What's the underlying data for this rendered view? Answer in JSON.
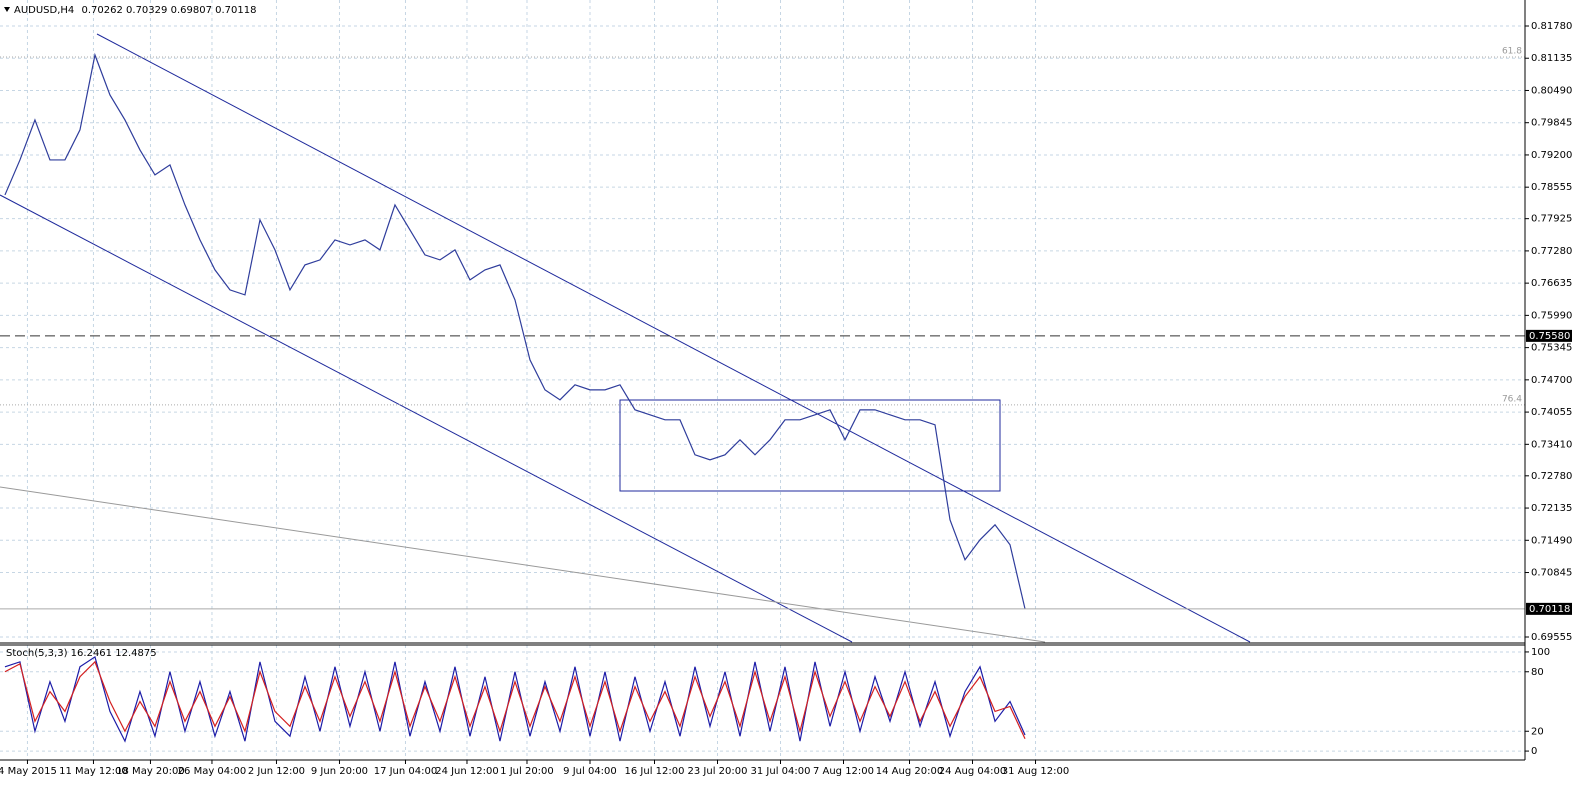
{
  "chart_data": [
    {
      "type": "line",
      "symbol": "AUDUSD,H4",
      "open": 0.70262,
      "high": 0.70329,
      "low": 0.69807,
      "series": [
        {
          "color": "#2f3d9c",
          "values": [
            0.784,
            0.791,
            0.799,
            0.791,
            0.791,
            0.797,
            0.812,
            0.804,
            0.799,
            0.793,
            0.788,
            0.79,
            0.782,
            0.775,
            0.769,
            0.765,
            0.764,
            0.779,
            0.773,
            0.765,
            0.77,
            0.771,
            0.775,
            0.774,
            0.775,
            0.773,
            0.782,
            0.777,
            0.772,
            0.771,
            0.773,
            0.767,
            0.769,
            0.77,
            0.763,
            0.751,
            0.745,
            0.743,
            0.746,
            0.745,
            0.745,
            0.746,
            0.741,
            0.74,
            0.739,
            0.739,
            0.732,
            0.731,
            0.732,
            0.735,
            0.732,
            0.735,
            0.739,
            0.739,
            0.74,
            0.741,
            0.735,
            0.741,
            0.741,
            0.74,
            0.739,
            0.739,
            0.738,
            0.719,
            0.711,
            0.715,
            0.718,
            0.714,
            0.70118
          ]
        }
      ],
      "xlim": [
        -0.33,
        101.33
      ],
      "xticks": [
        {
          "value": 1.5,
          "label": "4 May 2015"
        },
        {
          "value": 5.9,
          "label": "11 May 12:00"
        },
        {
          "value": 9.7,
          "label": "18 May 20:00"
        },
        {
          "value": 13.8,
          "label": "26 May 04:00"
        },
        {
          "value": 18.1,
          "label": "2 Jun 12:00"
        },
        {
          "value": 22.3,
          "label": "9 Jun 20:00"
        },
        {
          "value": 26.7,
          "label": "17 Jun 04:00"
        },
        {
          "value": 30.8,
          "label": "24 Jun 12:00"
        },
        {
          "value": 34.8,
          "label": "1 Jul 20:00"
        },
        {
          "value": 39,
          "label": "9 Jul 04:00"
        },
        {
          "value": 43.3,
          "label": "16 Jul 12:00"
        },
        {
          "value": 47.5,
          "label": "23 Jul 20:00"
        },
        {
          "value": 51.7,
          "label": "31 Jul 04:00"
        },
        {
          "value": 55.9,
          "label": "7 Aug 12:00"
        },
        {
          "value": 60.3,
          "label": "14 Aug 20:00"
        },
        {
          "value": 64.5,
          "label": "24 Aug 04:00"
        },
        {
          "value": 68.7,
          "label": "31 Aug 12:00"
        }
      ],
      "ylim": [
        0.69455,
        0.823
      ],
      "yticks": [
        {
          "value": 0.8178,
          "label": "0.81780"
        },
        0.81135,
        {
          "value": 0.8049,
          "label": "0.80490"
        },
        0.79845,
        {
          "value": 0.792,
          "label": "0.79200"
        },
        0.78555,
        0.77925,
        {
          "value": 0.7728,
          "label": "0.77280"
        },
        0.76635,
        {
          "value": 0.7599,
          "label": "0.75990"
        },
        0.75345,
        {
          "value": 0.747,
          "label": "0.74700"
        },
        0.74055,
        {
          "value": 0.7341,
          "label": "0.73410"
        },
        {
          "value": 0.7278,
          "label": "0.72780"
        },
        0.72135,
        {
          "value": 0.7149,
          "label": "0.71490"
        },
        0.70845,
        0.69555
      ],
      "grid": true,
      "levels": [
        {
          "value": 0.7558,
          "label": "0.75580"
        }
      ],
      "fib_levels": [
        {
          "value": 0.8116,
          "label": "61.8"
        },
        {
          "value": 0.742,
          "label": "76.4"
        }
      ]
    },
    {
      "type": "line",
      "title": "Stoch(5,3,3)",
      "series": [
        {
          "color": "#1c1ca8",
          "values": [
            85,
            90,
            20,
            70,
            30,
            85,
            95,
            40,
            10,
            60,
            15,
            80,
            20,
            70,
            15,
            60,
            10,
            90,
            30,
            15,
            75,
            20,
            85,
            25,
            80,
            20,
            90,
            15,
            70,
            20,
            85,
            15,
            75,
            10,
            80,
            15,
            70,
            20,
            85,
            15,
            80,
            10,
            75,
            20,
            70,
            15,
            85,
            25,
            80,
            15,
            90,
            20,
            85,
            10,
            90,
            25,
            80,
            20,
            75,
            30,
            80,
            25,
            70,
            15,
            60,
            85,
            30,
            50,
            16.2461
          ]
        },
        {
          "color": "#d42020",
          "values": [
            80,
            88,
            30,
            60,
            40,
            75,
            90,
            50,
            20,
            50,
            25,
            70,
            30,
            60,
            25,
            55,
            20,
            80,
            40,
            25,
            65,
            30,
            75,
            35,
            70,
            30,
            80,
            25,
            65,
            30,
            75,
            25,
            65,
            20,
            70,
            25,
            65,
            30,
            75,
            25,
            70,
            20,
            65,
            30,
            60,
            25,
            75,
            35,
            70,
            25,
            80,
            30,
            75,
            20,
            80,
            35,
            70,
            30,
            65,
            35,
            70,
            30,
            60,
            25,
            55,
            75,
            40,
            45,
            12.4875
          ]
        }
      ],
      "ylim": [
        -9,
        107
      ],
      "yticks": [
        100,
        80,
        20,
        0
      ],
      "grid": true
    }
  ]
}
